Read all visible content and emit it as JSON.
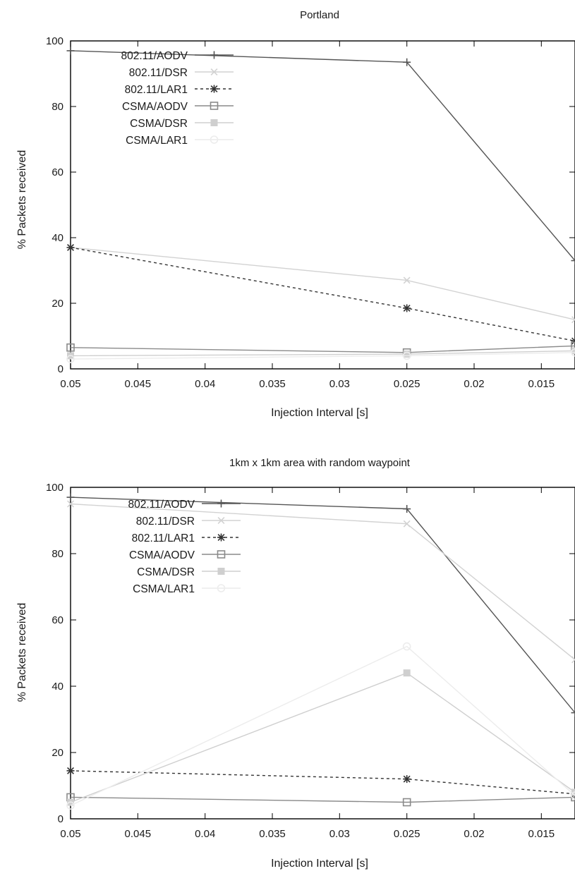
{
  "chart_data": [
    {
      "type": "line",
      "title": "Portland",
      "xlabel": "Injection Interval [s]",
      "ylabel": "% Packets received",
      "xlim": [
        0.05,
        0.0125
      ],
      "x_reversed": true,
      "ylim": [
        0,
        100
      ],
      "x_ticks": [
        "0.05",
        "0.045",
        "0.04",
        "0.035",
        "0.03",
        "0.025",
        "0.02",
        "0.015"
      ],
      "y_ticks": [
        "0",
        "20",
        "40",
        "60",
        "80",
        "100"
      ],
      "legend_position": "top-left",
      "grid": false,
      "series": [
        {
          "name": "802.11/AODV",
          "color": "#555555",
          "marker": "plus",
          "dash": "solid",
          "x": [
            0.05,
            0.025,
            0.0125
          ],
          "y": [
            97,
            93.5,
            33
          ]
        },
        {
          "name": "802.11/DSR",
          "color": "#d2d2d2",
          "marker": "x",
          "dash": "solid",
          "x": [
            0.05,
            0.025,
            0.0125
          ],
          "y": [
            37,
            27,
            15
          ]
        },
        {
          "name": "802.11/LAR1",
          "color": "#333333",
          "marker": "asterisk",
          "dash": "dashed",
          "x": [
            0.05,
            0.025,
            0.0125
          ],
          "y": [
            37,
            18.5,
            8.5
          ]
        },
        {
          "name": "CSMA/AODV",
          "color": "#8a8a8a",
          "marker": "square",
          "dash": "solid",
          "x": [
            0.05,
            0.025,
            0.0125
          ],
          "y": [
            6.5,
            5,
            7
          ]
        },
        {
          "name": "CSMA/DSR",
          "color": "#cfcfcf",
          "marker": "filled-square",
          "dash": "solid",
          "x": [
            0.05,
            0.025,
            0.0125
          ],
          "y": [
            4,
            4.5,
            5.5
          ]
        },
        {
          "name": "CSMA/LAR1",
          "color": "#ececec",
          "marker": "circle",
          "dash": "solid",
          "x": [
            0.05,
            0.025,
            0.0125
          ],
          "y": [
            3,
            4,
            5
          ]
        }
      ]
    },
    {
      "type": "line",
      "title": "1km x 1km area with random waypoint",
      "xlabel": "Injection Interval [s]",
      "ylabel": "% Packets received",
      "xlim": [
        0.05,
        0.0125
      ],
      "x_reversed": true,
      "ylim": [
        0,
        100
      ],
      "x_ticks": [
        "0.05",
        "0.045",
        "0.04",
        "0.035",
        "0.03",
        "0.025",
        "0.02",
        "0.015"
      ],
      "y_ticks": [
        "0",
        "20",
        "40",
        "60",
        "80",
        "100"
      ],
      "legend_position": "top-left",
      "grid": false,
      "series": [
        {
          "name": "802.11/AODV",
          "color": "#555555",
          "marker": "plus",
          "dash": "solid",
          "x": [
            0.05,
            0.025,
            0.0125
          ],
          "y": [
            97,
            93.5,
            32
          ]
        },
        {
          "name": "802.11/DSR",
          "color": "#d2d2d2",
          "marker": "x",
          "dash": "solid",
          "x": [
            0.05,
            0.025,
            0.0125
          ],
          "y": [
            95,
            89,
            48
          ]
        },
        {
          "name": "802.11/LAR1",
          "color": "#333333",
          "marker": "asterisk",
          "dash": "dashed",
          "x": [
            0.05,
            0.025,
            0.0125
          ],
          "y": [
            14.5,
            12,
            7.5
          ]
        },
        {
          "name": "CSMA/AODV",
          "color": "#8a8a8a",
          "marker": "square",
          "dash": "solid",
          "x": [
            0.05,
            0.025,
            0.0125
          ],
          "y": [
            6.5,
            5,
            6.5
          ]
        },
        {
          "name": "CSMA/DSR",
          "color": "#cfcfcf",
          "marker": "filled-square",
          "dash": "solid",
          "x": [
            0.05,
            0.025,
            0.0125
          ],
          "y": [
            5,
            44,
            8
          ]
        },
        {
          "name": "CSMA/LAR1",
          "color": "#ececec",
          "marker": "circle",
          "dash": "solid",
          "x": [
            0.05,
            0.025,
            0.0125
          ],
          "y": [
            4,
            52,
            7
          ]
        }
      ]
    }
  ]
}
